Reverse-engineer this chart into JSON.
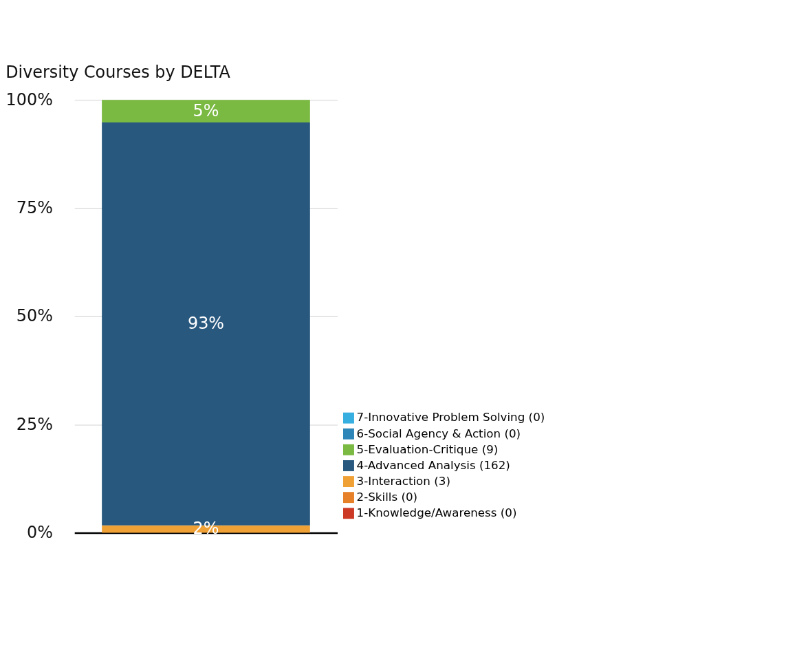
{
  "chart_data": {
    "type": "bar",
    "title": "Diversity Courses by DELTA",
    "stacked": true,
    "categories": [
      null
    ],
    "series": [
      {
        "name": "1-Knowledge/Awareness (0)",
        "color": "#cc3a26",
        "values": [
          0
        ],
        "value_labels": [
          null
        ]
      },
      {
        "name": "2-Skills (0)",
        "color": "#e6812a",
        "values": [
          0
        ],
        "value_labels": [
          null
        ]
      },
      {
        "name": "3-Interaction (3)",
        "color": "#f0a136",
        "values": [
          1.7
        ],
        "value_labels": [
          "2%"
        ]
      },
      {
        "name": "4-Advanced Analysis (162)",
        "color": "#29587f",
        "values": [
          93.1
        ],
        "value_labels": [
          "93%"
        ]
      },
      {
        "name": "5-Evaluation-Critique (9)",
        "color": "#7ab942",
        "values": [
          5.2
        ],
        "value_labels": [
          "5%"
        ]
      },
      {
        "name": "6-Social Agency & Action (0)",
        "color": "#2e86b8",
        "values": [
          0
        ],
        "value_labels": [
          null
        ]
      },
      {
        "name": "7-Innovative Problem Solving (0)",
        "color": "#36aee0",
        "values": [
          0
        ],
        "value_labels": [
          null
        ]
      }
    ],
    "ylim": [
      0,
      100
    ],
    "yticks": [
      {
        "value": 0,
        "label": "0%"
      },
      {
        "value": 25,
        "label": "25%"
      },
      {
        "value": 50,
        "label": "50%"
      },
      {
        "value": 75,
        "label": "75%"
      },
      {
        "value": 100,
        "label": "100%"
      }
    ],
    "grid": "y",
    "legend": "bottom right"
  }
}
